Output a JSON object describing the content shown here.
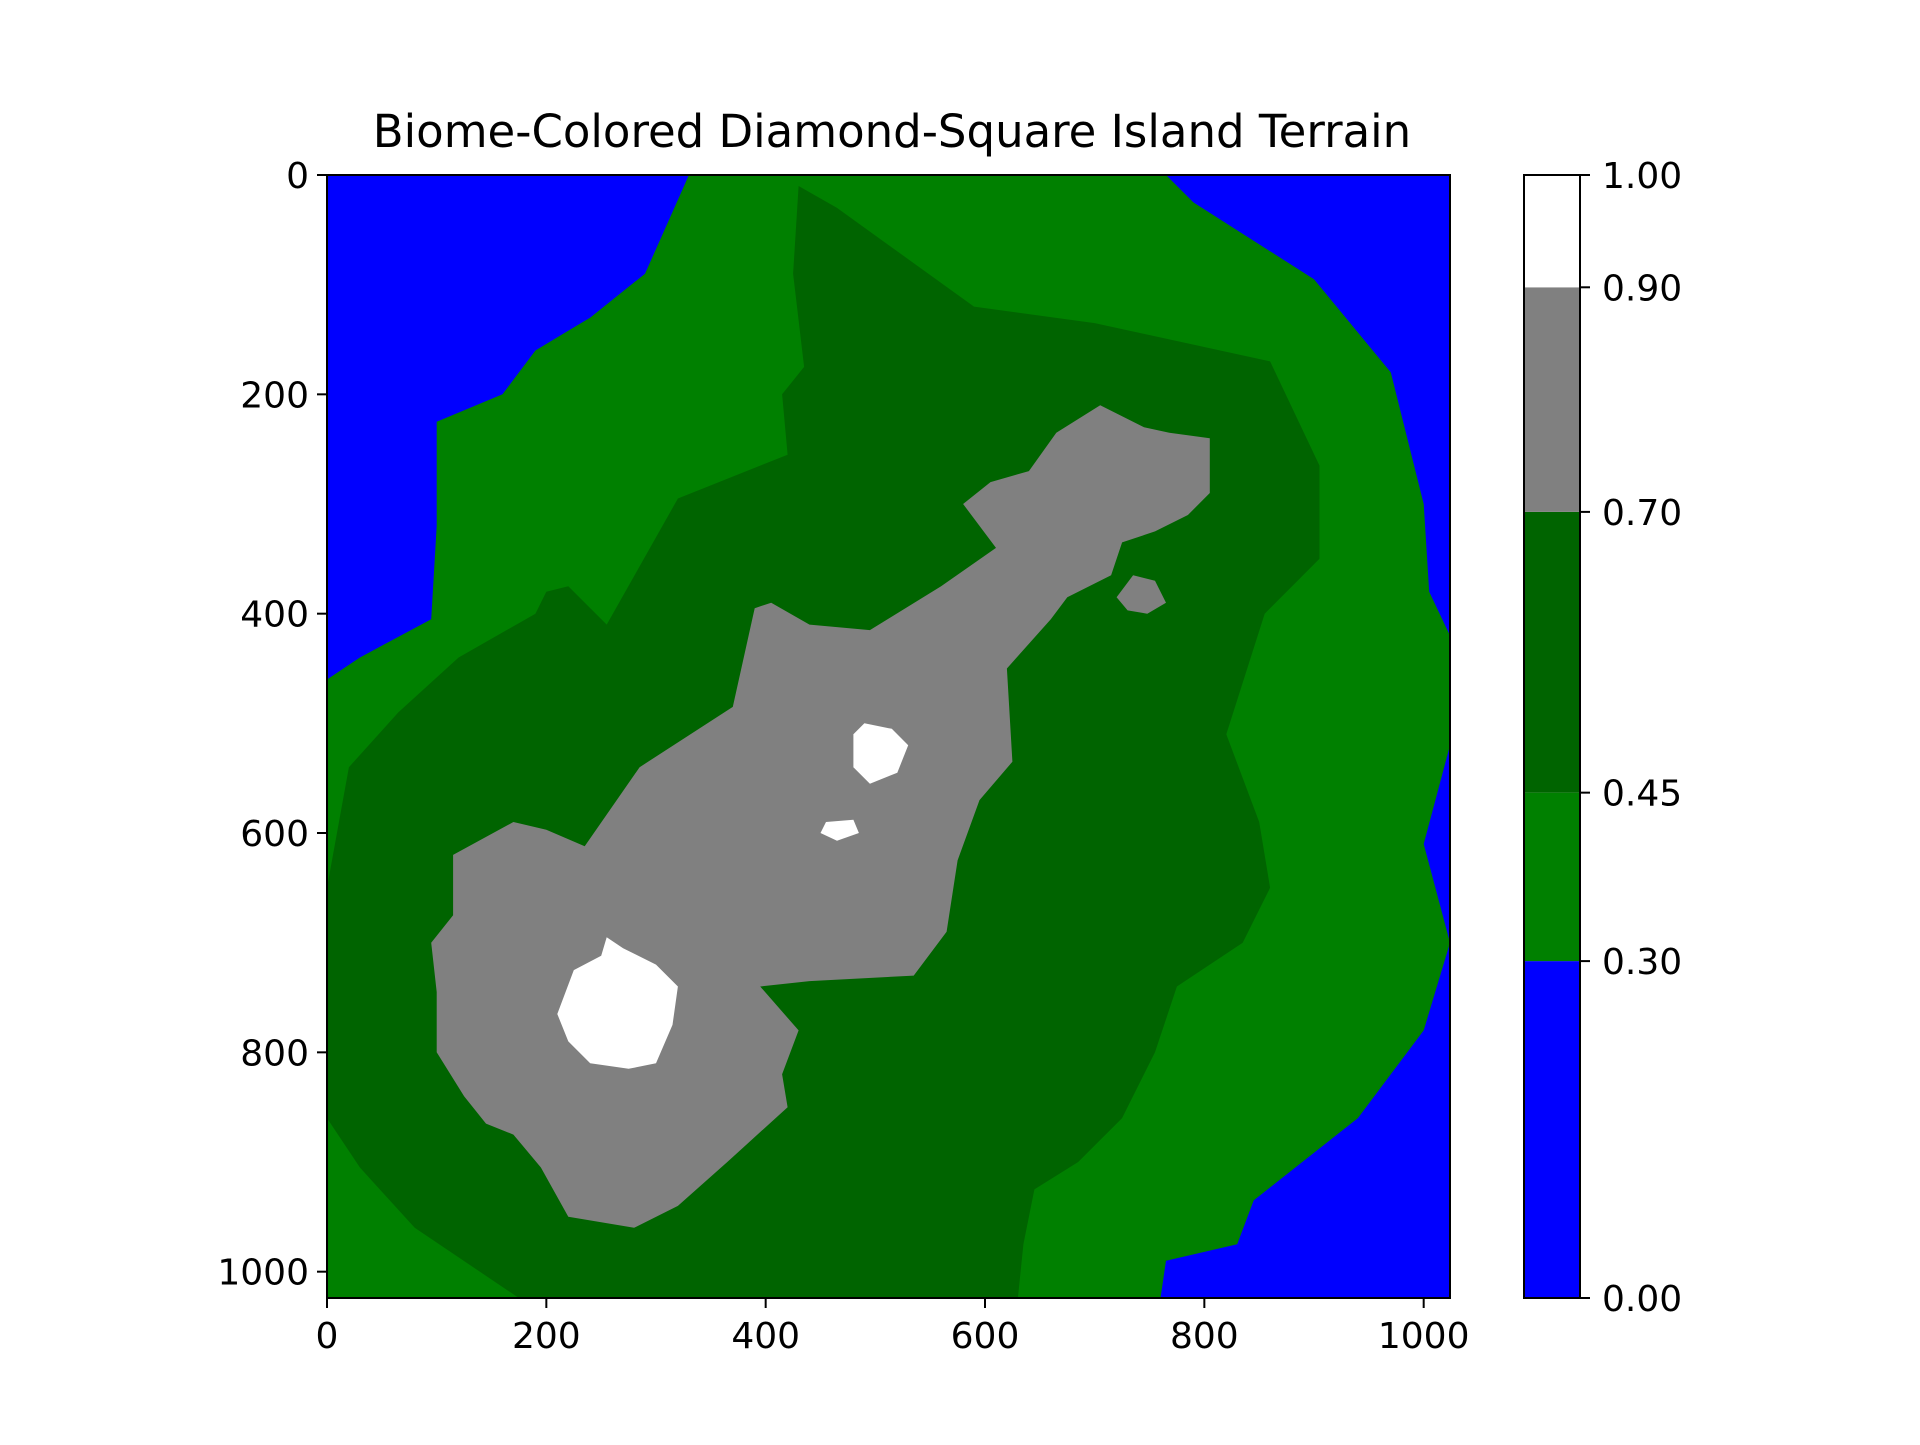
{
  "chart_data": {
    "type": "heatmap",
    "title": "Biome-Colored Diamond-Square Island Terrain",
    "xlabel": "",
    "ylabel": "",
    "xlim": [
      0,
      1024
    ],
    "ylim": [
      1024,
      0
    ],
    "x_ticks": [
      0,
      200,
      400,
      600,
      800,
      1000
    ],
    "y_ticks": [
      0,
      200,
      400,
      600,
      800,
      1000
    ],
    "x_tick_labels": [
      "0",
      "200",
      "400",
      "600",
      "800",
      "1000"
    ],
    "y_tick_labels": [
      "0",
      "200",
      "400",
      "600",
      "800",
      "1000"
    ],
    "grid": false,
    "colorbar": {
      "boundaries": [
        0.0,
        0.3,
        0.45,
        0.7,
        0.9,
        1.0
      ],
      "tick_labels": [
        "0.00",
        "0.30",
        "0.45",
        "0.70",
        "0.90",
        "1.00"
      ],
      "colors": [
        "#0000ff",
        "#008000",
        "#006400",
        "#808080",
        "#ffffff"
      ]
    },
    "biomes": [
      {
        "range": [
          0.0,
          0.3
        ],
        "color": "#0000ff"
      },
      {
        "range": [
          0.3,
          0.45
        ],
        "color": "#008000"
      },
      {
        "range": [
          0.45,
          0.7
        ],
        "color": "#006400"
      },
      {
        "range": [
          0.7,
          0.9
        ],
        "color": "#808080"
      },
      {
        "range": [
          0.9,
          1.0
        ],
        "color": "#ffffff"
      }
    ],
    "regions": [
      {
        "level": 1,
        "points": [
          [
            330,
            0
          ],
          [
            765,
            0
          ],
          [
            790,
            25
          ],
          [
            900,
            95
          ],
          [
            970,
            180
          ],
          [
            1000,
            300
          ],
          [
            1005,
            380
          ],
          [
            1024,
            420
          ],
          [
            1024,
            520
          ],
          [
            1000,
            610
          ],
          [
            1024,
            700
          ],
          [
            1000,
            780
          ],
          [
            940,
            860
          ],
          [
            845,
            935
          ],
          [
            830,
            975
          ],
          [
            765,
            990
          ],
          [
            760,
            1024
          ],
          [
            0,
            1024
          ],
          [
            0,
            460
          ],
          [
            30,
            440
          ],
          [
            95,
            405
          ],
          [
            100,
            320
          ],
          [
            100,
            225
          ],
          [
            160,
            200
          ],
          [
            190,
            160
          ],
          [
            215,
            145
          ],
          [
            240,
            130
          ],
          [
            290,
            90
          ],
          [
            310,
            45
          ]
        ]
      },
      {
        "level": 2,
        "points": [
          [
            430,
            10
          ],
          [
            465,
            30
          ],
          [
            590,
            120
          ],
          [
            700,
            135
          ],
          [
            860,
            170
          ],
          [
            905,
            265
          ],
          [
            905,
            350
          ],
          [
            855,
            400
          ],
          [
            820,
            510
          ],
          [
            850,
            590
          ],
          [
            860,
            650
          ],
          [
            835,
            700
          ],
          [
            775,
            740
          ],
          [
            755,
            800
          ],
          [
            725,
            860
          ],
          [
            685,
            900
          ],
          [
            645,
            925
          ],
          [
            635,
            975
          ],
          [
            630,
            1024
          ],
          [
            175,
            1024
          ],
          [
            80,
            960
          ],
          [
            30,
            905
          ],
          [
            0,
            860
          ],
          [
            0,
            650
          ],
          [
            20,
            540
          ],
          [
            65,
            490
          ],
          [
            120,
            440
          ],
          [
            190,
            400
          ],
          [
            200,
            380
          ],
          [
            220,
            375
          ],
          [
            255,
            410
          ],
          [
            320,
            295
          ],
          [
            420,
            255
          ],
          [
            415,
            200
          ],
          [
            435,
            175
          ],
          [
            425,
            90
          ]
        ]
      },
      {
        "level": 3,
        "points": [
          [
            705,
            210
          ],
          [
            745,
            230
          ],
          [
            768,
            235
          ],
          [
            805,
            240
          ],
          [
            805,
            290
          ],
          [
            785,
            310
          ],
          [
            755,
            325
          ],
          [
            725,
            335
          ],
          [
            715,
            365
          ],
          [
            675,
            385
          ],
          [
            660,
            405
          ],
          [
            620,
            450
          ],
          [
            625,
            535
          ],
          [
            595,
            570
          ],
          [
            575,
            625
          ],
          [
            565,
            690
          ],
          [
            535,
            730
          ],
          [
            440,
            735
          ],
          [
            395,
            740
          ],
          [
            430,
            780
          ],
          [
            415,
            820
          ],
          [
            420,
            850
          ],
          [
            365,
            900
          ],
          [
            320,
            940
          ],
          [
            280,
            960
          ],
          [
            220,
            950
          ],
          [
            195,
            905
          ],
          [
            170,
            875
          ],
          [
            145,
            865
          ],
          [
            125,
            840
          ],
          [
            100,
            800
          ],
          [
            100,
            745
          ],
          [
            95,
            700
          ],
          [
            115,
            675
          ],
          [
            115,
            620
          ],
          [
            170,
            590
          ],
          [
            200,
            597
          ],
          [
            235,
            612
          ],
          [
            285,
            540
          ],
          [
            370,
            485
          ],
          [
            390,
            395
          ],
          [
            405,
            390
          ],
          [
            440,
            410
          ],
          [
            495,
            415
          ],
          [
            560,
            375
          ],
          [
            610,
            340
          ],
          [
            580,
            300
          ],
          [
            605,
            280
          ],
          [
            640,
            270
          ],
          [
            665,
            235
          ]
        ]
      },
      {
        "level": 3,
        "points": [
          [
            735,
            365
          ],
          [
            755,
            370
          ],
          [
            765,
            390
          ],
          [
            748,
            400
          ],
          [
            730,
            397
          ],
          [
            720,
            385
          ]
        ]
      },
      {
        "level": 4,
        "points": [
          [
            490,
            500
          ],
          [
            515,
            505
          ],
          [
            530,
            520
          ],
          [
            520,
            545
          ],
          [
            495,
            555
          ],
          [
            480,
            540
          ],
          [
            480,
            510
          ]
        ]
      },
      {
        "level": 4,
        "points": [
          [
            455,
            590
          ],
          [
            480,
            588
          ],
          [
            485,
            600
          ],
          [
            465,
            607
          ],
          [
            450,
            600
          ]
        ]
      },
      {
        "level": 4,
        "points": [
          [
            255,
            695
          ],
          [
            270,
            705
          ],
          [
            300,
            720
          ],
          [
            320,
            740
          ],
          [
            315,
            775
          ],
          [
            300,
            810
          ],
          [
            275,
            815
          ],
          [
            240,
            810
          ],
          [
            220,
            790
          ],
          [
            210,
            765
          ],
          [
            225,
            725
          ],
          [
            250,
            712
          ]
        ]
      }
    ]
  }
}
